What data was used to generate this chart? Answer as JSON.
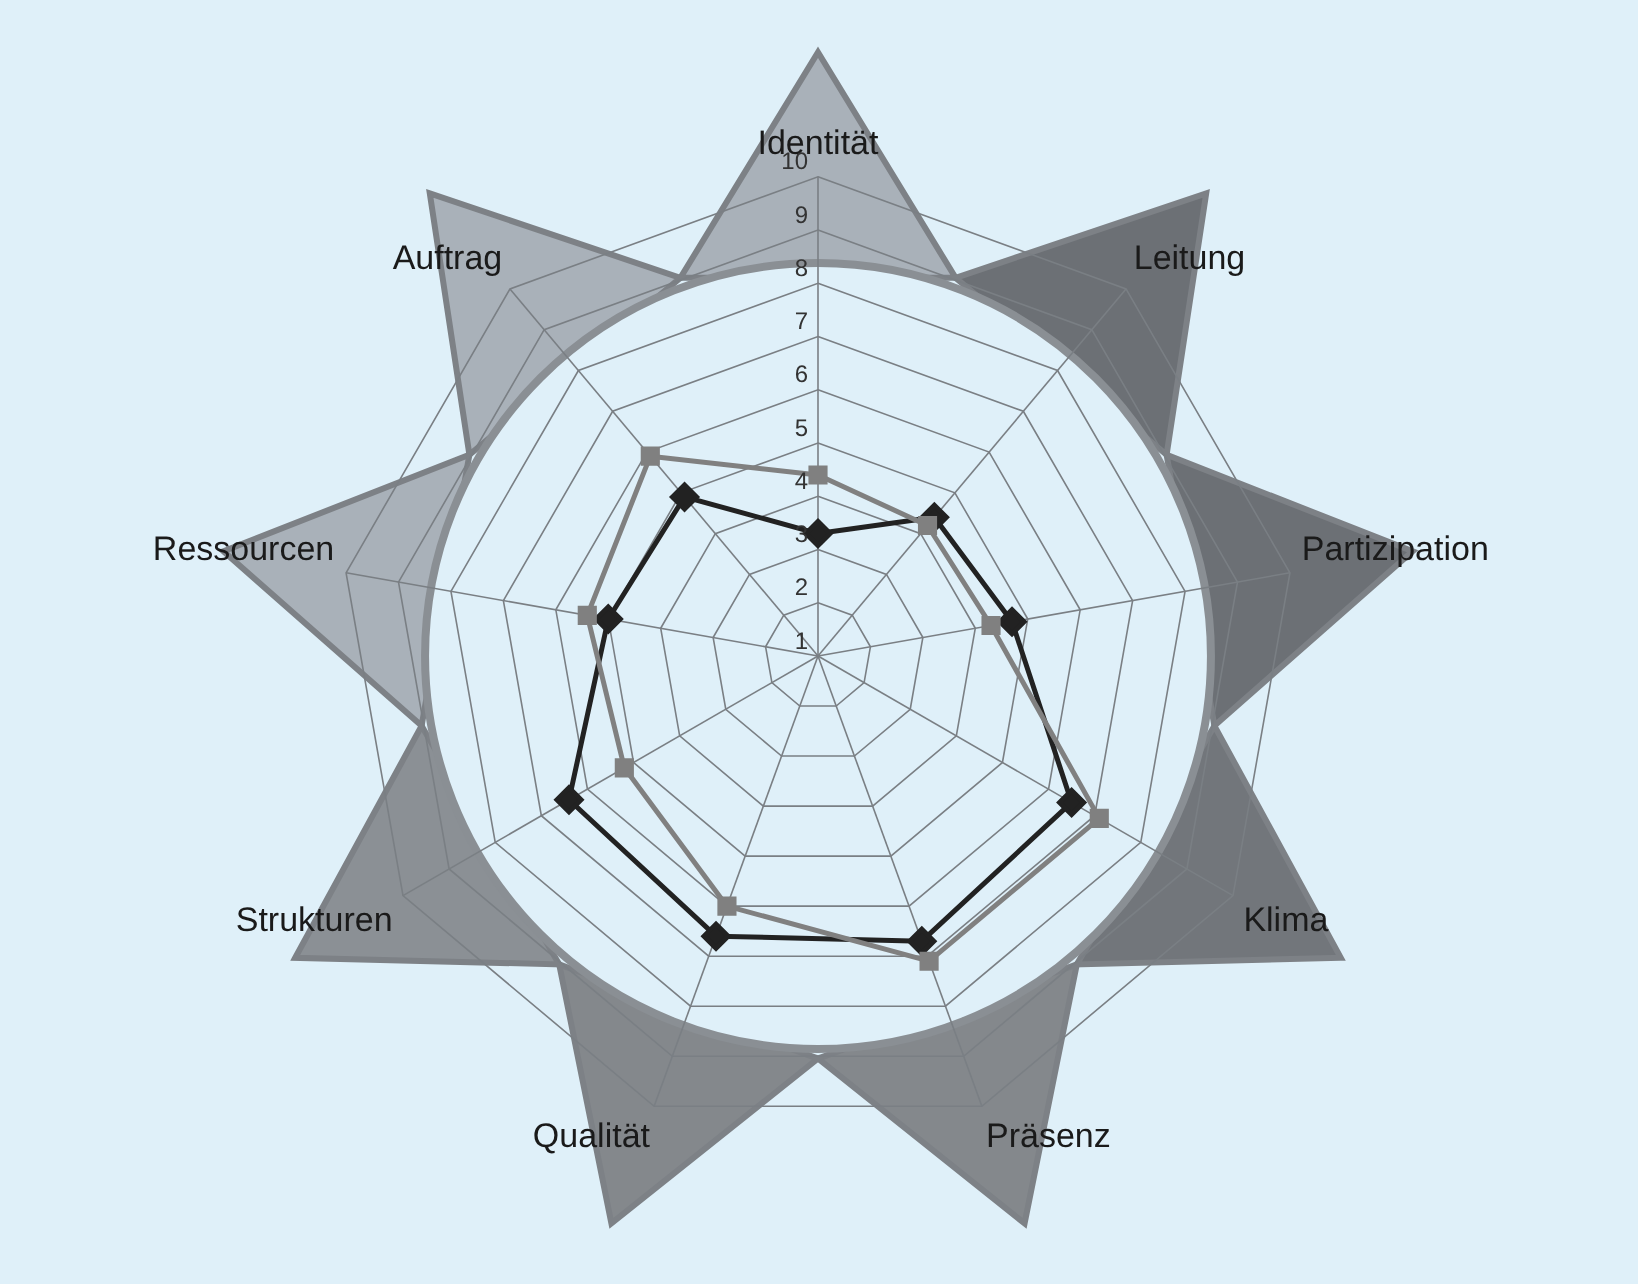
{
  "chart_data": {
    "type": "radar",
    "categories": [
      "Identität",
      "Leitung",
      "Partizipation",
      "Klima",
      "Präsenz",
      "Qualität",
      "Strukturen",
      "Ressourcen",
      "Auftrag"
    ],
    "series": [
      {
        "color": "#808080",
        "marker": "square",
        "values": [
          4.4,
          4.2,
          4.3,
          7.1,
          7.1,
          6.0,
          5.2,
          5.4,
          5.9
        ]
      },
      {
        "color": "#222222",
        "marker": "diamond",
        "values": [
          3.3,
          4.4,
          4.7,
          6.5,
          6.7,
          6.6,
          6.4,
          5.0,
          4.9
        ]
      }
    ],
    "ylim": [
      1,
      10
    ],
    "yticks": [
      1,
      2,
      3,
      4,
      5,
      6,
      7,
      8,
      9,
      10
    ],
    "grid": true,
    "legend": false
  }
}
